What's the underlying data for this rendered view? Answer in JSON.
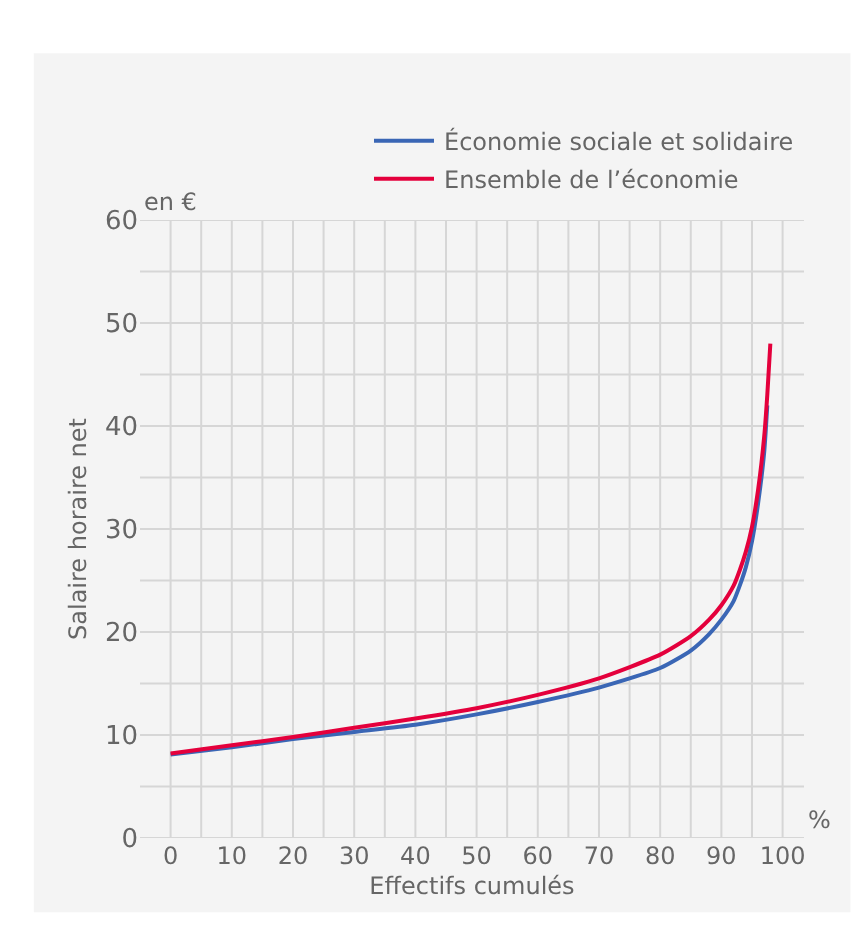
{
  "chart_data": {
    "type": "line",
    "xlabel": "Effectifs cumulés",
    "ylabel": "Salaire horaire net",
    "annotations": [
      "en €",
      "%"
    ],
    "xlim": [
      -5,
      103.5
    ],
    "ylim": [
      0,
      60
    ],
    "xticks": [
      0,
      10,
      20,
      30,
      40,
      50,
      60,
      70,
      80,
      90,
      100
    ],
    "yticks": [
      0,
      10,
      20,
      30,
      40,
      50,
      60
    ],
    "grid": true,
    "legend": "top right",
    "series": [
      {
        "name": "Économie sociale et solidaire",
        "color": "#3a66b5",
        "x": [
          0,
          10,
          20,
          30,
          40,
          50,
          60,
          70,
          80,
          85,
          88,
          90,
          92,
          93,
          94,
          95,
          96,
          97,
          97.5
        ],
        "values": [
          8.1,
          8.8,
          9.6,
          10.3,
          11.0,
          12.0,
          13.2,
          14.6,
          16.5,
          18.2,
          19.8,
          21.2,
          23.0,
          24.5,
          26.3,
          28.8,
          32.5,
          37.5,
          42
        ]
      },
      {
        "name": "Ensemble de l’économie",
        "color": "#e4003c",
        "x": [
          0,
          10,
          20,
          30,
          40,
          50,
          60,
          70,
          80,
          85,
          88,
          90,
          92,
          93,
          94,
          95,
          96,
          97,
          97.5,
          98
        ],
        "values": [
          8.2,
          9.0,
          9.8,
          10.7,
          11.6,
          12.6,
          13.9,
          15.5,
          17.8,
          19.6,
          21.2,
          22.6,
          24.5,
          26.0,
          27.8,
          30.2,
          33.8,
          39,
          43,
          48
        ]
      }
    ]
  }
}
